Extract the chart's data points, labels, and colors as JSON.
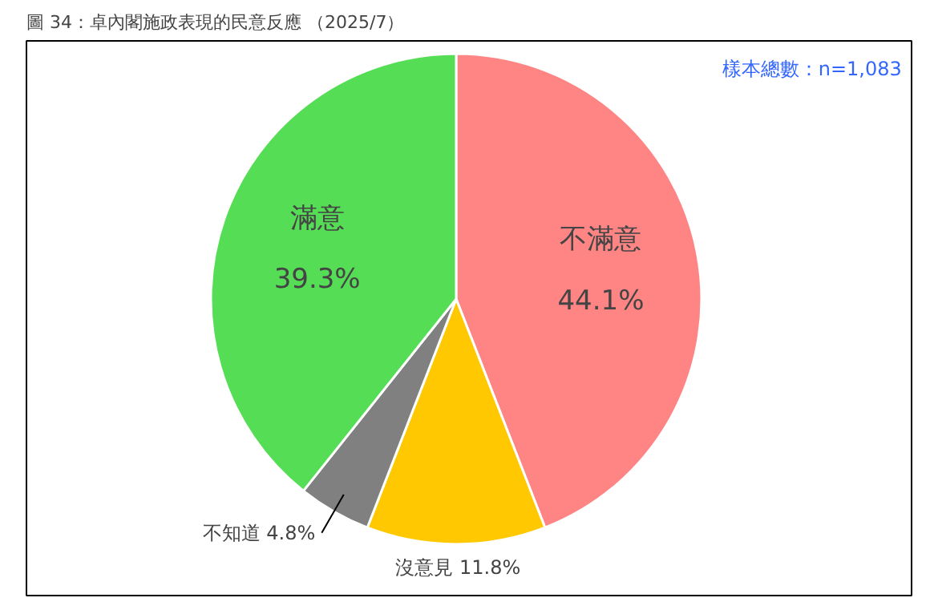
{
  "chart_data": {
    "type": "pie",
    "title": "圖 34：卓內閣施政表現的民意反應 （2025/7）",
    "categories": [
      "不滿意",
      "沒意見",
      "不知道",
      "滿意"
    ],
    "values": [
      44.1,
      11.8,
      4.8,
      39.3
    ],
    "value_labels": [
      "44.1%",
      "11.8%",
      "4.8%",
      "39.3%"
    ],
    "colors": [
      "#ff8585",
      "#ffc800",
      "#808080",
      "#55dd55"
    ],
    "annotations": [
      "樣本總數：n=1,083"
    ]
  }
}
